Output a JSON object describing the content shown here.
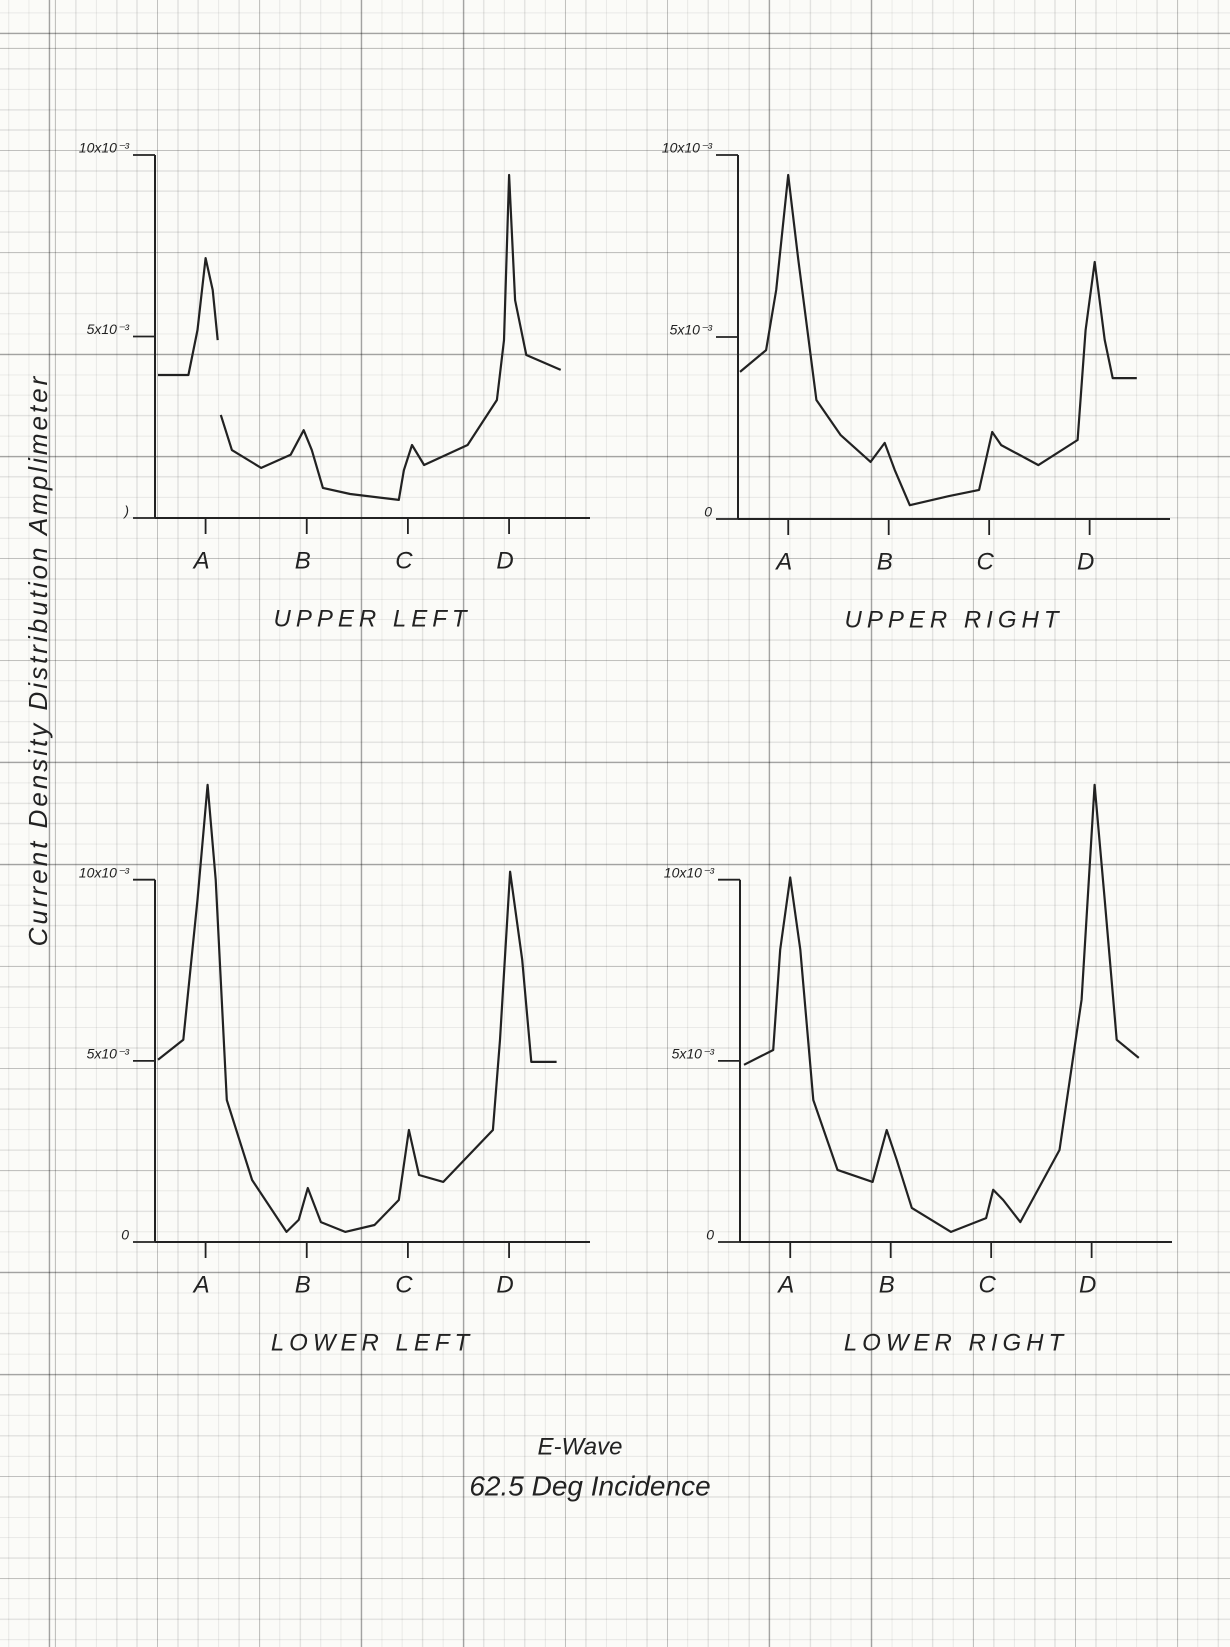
{
  "ylabel": "Current Density Distribution Amplimeter",
  "caption": [
    "E-Wave",
    "62.5 Deg Incidence"
  ],
  "chart_data": [
    {
      "type": "line",
      "title": "UPPER LEFT",
      "color": "#222222",
      "xlim": [
        0.5,
        4.8
      ],
      "xticks": [
        {
          "value": 1,
          "label": "A"
        },
        {
          "value": 2,
          "label": "B"
        },
        {
          "value": 3,
          "label": "C"
        },
        {
          "value": 4,
          "label": "D"
        }
      ],
      "ylim": [
        0,
        0.01
      ],
      "yticks": [
        {
          "value": 0,
          "label": ")"
        },
        {
          "value": 0.005,
          "label": "5x10⁻³"
        },
        {
          "value": 0.01,
          "label": "10x10⁻³"
        }
      ],
      "x": [
        0.53,
        0.83,
        0.92,
        1.0,
        1.07,
        1.12,
        null,
        1.15,
        1.26,
        1.55,
        1.84,
        1.97,
        2.05,
        2.16,
        2.43,
        2.91,
        2.96,
        3.04,
        3.16,
        3.59,
        3.88,
        3.95,
        4.0,
        4.06,
        4.17,
        4.51
      ],
      "values": [
        0.00394,
        0.00394,
        0.00518,
        0.00716,
        0.00628,
        0.0049,
        null,
        0.00284,
        0.00187,
        0.00138,
        0.00174,
        0.00242,
        0.00187,
        0.00083,
        0.00066,
        0.0005,
        0.00132,
        0.00201,
        0.00146,
        0.00201,
        0.00325,
        0.0049,
        0.00945,
        0.006,
        0.00449,
        0.00408
      ]
    },
    {
      "type": "line",
      "title": "UPPER RIGHT",
      "color": "#222222",
      "xlim": [
        0.5,
        4.8
      ],
      "xticks": [
        {
          "value": 1,
          "label": "A"
        },
        {
          "value": 2,
          "label": "B"
        },
        {
          "value": 3,
          "label": "C"
        },
        {
          "value": 4,
          "label": "D"
        }
      ],
      "ylim": [
        0,
        0.01
      ],
      "yticks": [
        {
          "value": 0,
          "label": "0"
        },
        {
          "value": 0.005,
          "label": "5x10⁻³"
        },
        {
          "value": 0.01,
          "label": "10x10⁻³"
        }
      ],
      "x": [
        0.52,
        0.78,
        0.88,
        1.0,
        1.1,
        1.28,
        1.52,
        1.82,
        1.96,
        2.06,
        2.21,
        2.6,
        2.9,
        3.03,
        3.12,
        3.49,
        3.88,
        3.96,
        4.05,
        4.15,
        4.23,
        4.47
      ],
      "values": [
        0.00404,
        0.00464,
        0.00629,
        0.00945,
        0.00712,
        0.00327,
        0.00231,
        0.00157,
        0.00209,
        0.00135,
        0.00038,
        0.00063,
        0.0008,
        0.00239,
        0.00203,
        0.00148,
        0.00217,
        0.00519,
        0.00706,
        0.00492,
        0.00387,
        0.00387
      ]
    },
    {
      "type": "line",
      "title": "LOWER LEFT",
      "color": "#222222",
      "xlim": [
        0.5,
        4.8
      ],
      "xticks": [
        {
          "value": 1,
          "label": "A"
        },
        {
          "value": 2,
          "label": "B"
        },
        {
          "value": 3,
          "label": "C"
        },
        {
          "value": 4,
          "label": "D"
        }
      ],
      "ylim": [
        0,
        0.013
      ],
      "yticks": [
        {
          "value": 0,
          "label": "0"
        },
        {
          "value": 0.005,
          "label": "5x10⁻³"
        },
        {
          "value": 0.01,
          "label": "10x10⁻³"
        }
      ],
      "x": [
        0.53,
        0.78,
        0.92,
        1.02,
        1.1,
        1.21,
        1.46,
        1.8,
        1.92,
        2.01,
        2.14,
        2.38,
        2.67,
        2.91,
        3.01,
        3.11,
        3.35,
        3.84,
        3.91,
        4.01,
        4.13,
        4.22,
        4.47
      ],
      "values": [
        0.00503,
        0.00558,
        0.00945,
        0.01262,
        0.01,
        0.00392,
        0.00171,
        0.00028,
        0.00061,
        0.00149,
        0.00055,
        0.00028,
        0.00047,
        0.00116,
        0.00309,
        0.00185,
        0.00166,
        0.00309,
        0.00558,
        0.01022,
        0.00779,
        0.00497,
        0.00497
      ]
    },
    {
      "type": "line",
      "title": "LOWER RIGHT",
      "color": "#222222",
      "xlim": [
        0.5,
        4.8
      ],
      "xticks": [
        {
          "value": 1,
          "label": "A"
        },
        {
          "value": 2,
          "label": "B"
        },
        {
          "value": 3,
          "label": "C"
        },
        {
          "value": 4,
          "label": "D"
        }
      ],
      "ylim": [
        0,
        0.013
      ],
      "yticks": [
        {
          "value": 0,
          "label": "0"
        },
        {
          "value": 0.005,
          "label": "5x10⁻³"
        },
        {
          "value": 0.01,
          "label": "10x10⁻³"
        }
      ],
      "x": [
        0.54,
        0.83,
        0.9,
        1.0,
        1.1,
        1.23,
        1.47,
        1.82,
        1.96,
        2.06,
        2.21,
        2.6,
        2.95,
        3.02,
        3.12,
        3.29,
        3.68,
        3.9,
        4.03,
        4.13,
        4.25,
        4.47
      ],
      "values": [
        0.00489,
        0.0053,
        0.00807,
        0.01006,
        0.00807,
        0.00392,
        0.00199,
        0.00166,
        0.00309,
        0.00227,
        0.00094,
        0.00028,
        0.00066,
        0.00144,
        0.00116,
        0.00055,
        0.00254,
        0.00669,
        0.01262,
        0.00945,
        0.00558,
        0.00508
      ]
    }
  ]
}
